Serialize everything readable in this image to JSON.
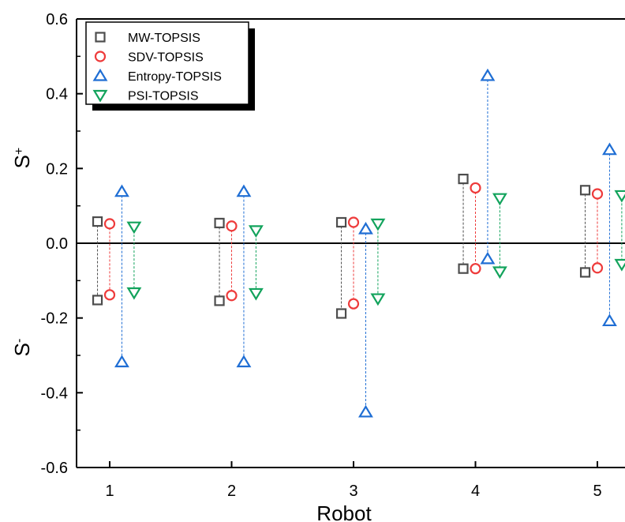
{
  "chart_data": {
    "type": "scatter",
    "xlabel": "Robot",
    "ylabel_top": "S",
    "ylabel_top_sup": "+",
    "ylabel_bottom": "S",
    "ylabel_bottom_sup": "-",
    "ylim": [
      -0.6,
      0.6
    ],
    "yticks": [
      "-0.6",
      "-0.4",
      "-0.2",
      "0.0",
      "0.2",
      "0.4",
      "0.6"
    ],
    "categories": [
      "1",
      "2",
      "3",
      "4",
      "5"
    ],
    "legend_position": "top-left",
    "series": [
      {
        "name": "MW-TOPSIS",
        "color": "#4d4d4d",
        "marker": "square",
        "offset": -0.1,
        "s_plus": [
          0.058,
          0.054,
          0.056,
          0.172,
          0.142
        ],
        "s_minus": [
          -0.152,
          -0.154,
          -0.188,
          -0.068,
          -0.078
        ]
      },
      {
        "name": "SDV-TOPSIS",
        "color": "#ee3b3b",
        "marker": "circle",
        "offset": 0.0,
        "s_plus": [
          0.052,
          0.046,
          0.056,
          0.148,
          0.132
        ],
        "s_minus": [
          -0.138,
          -0.14,
          -0.162,
          -0.068,
          -0.066
        ]
      },
      {
        "name": "Entropy-TOPSIS",
        "color": "#1f6ed4",
        "marker": "triangle-up",
        "offset": 0.1,
        "s_plus": [
          0.138,
          0.138,
          0.038,
          0.448,
          0.25
        ],
        "s_minus": [
          -0.318,
          -0.318,
          -0.452,
          -0.042,
          -0.208
        ]
      },
      {
        "name": "PSI-TOPSIS",
        "color": "#12a35c",
        "marker": "triangle-down",
        "offset": 0.2,
        "s_plus": [
          0.044,
          0.034,
          0.052,
          0.12,
          0.128
        ],
        "s_minus": [
          -0.132,
          -0.134,
          -0.148,
          -0.076,
          -0.056
        ]
      }
    ]
  }
}
